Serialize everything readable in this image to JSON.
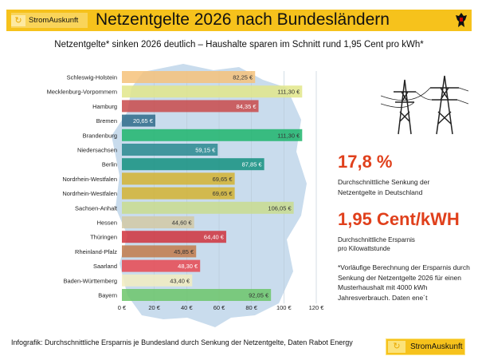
{
  "header": {
    "brand": "StromAuskunft",
    "title": "Netzentgelte 2026 nach Bundesländern"
  },
  "subtitle": "Netzentgelte* sinken 2026 deutlich – Haushalte sparen im Schnitt rund 1,95 Cent pro kWh*",
  "stats": {
    "pct": "17,8 %",
    "pct_desc1": "Durchschnittliche Senkung der",
    "pct_desc2": "Netzentgelte in Deutschland",
    "cent": "1,95 Cent/kWH",
    "cent_desc1": "Durchschnittliche Ersparnis",
    "cent_desc2": "pro Kilowattstunde",
    "note1": "*Vorläufige Berechnung der Ersparnis durch",
    "note2": "Senkung der Netzentgelte 2026 für einen",
    "note3": "Musterhaushalt mit 4000 kWh",
    "note4": "Jahresverbrauch. Daten ene´t"
  },
  "footer": {
    "text": "Infografik: Durchschnittliche Ersparnis je Bundesland durch Senkung der Netzentgelte, Daten Rabot Energy",
    "brand": "StromAuskunft"
  },
  "chart_data": {
    "type": "bar",
    "orientation": "horizontal",
    "categories": [
      "Schleswig-Holstein",
      "Mecklenburg-Vorpommern",
      "Hamburg",
      "Bremen",
      "Brandenburg",
      "Niedersachsen",
      "Berlin",
      "Nordrhein-Westfalen",
      "Nordrhein-Westfalen",
      "Sachsen-Anhalt",
      "Hessen",
      "Thüringen",
      "Rheinland-Pfalz",
      "Saarland",
      "Baden-Württemberg",
      "Bayern"
    ],
    "values": [
      82.25,
      111.3,
      84.35,
      20.65,
      111.3,
      59.15,
      87.85,
      69.65,
      69.65,
      106.05,
      44.6,
      64.4,
      45.85,
      48.3,
      43.4,
      92.05
    ],
    "data_labels": [
      "82,25 €",
      "111,30 €",
      "84,35 €",
      "20,65 €",
      "111,30 €",
      "59,15 €",
      "87,85 €",
      "69,65 €",
      "69,65 €",
      "106,05 €",
      "44,60 €",
      "64,40 €",
      "45,85 €",
      "48,30 €",
      "43,40 €",
      "92,05 €"
    ],
    "colors": [
      "#f6c27a",
      "#e2e68a",
      "#c94a4a",
      "#2e6b8a",
      "#1fb56c",
      "#2a8a8f",
      "#14907f",
      "#d3b331",
      "#d3b331",
      "#c9dc8e",
      "#d2c9a5",
      "#d0323c",
      "#c27a4a",
      "#e84850",
      "#f2ecc0",
      "#6cc66a"
    ],
    "label_colors": [
      "#333",
      "#333",
      "#fff",
      "#fff",
      "#333",
      "#fff",
      "#fff",
      "#333",
      "#333",
      "#333",
      "#333",
      "#fff",
      "#333",
      "#fff",
      "#333",
      "#333"
    ],
    "xlim": [
      0,
      120
    ],
    "xticks": [
      "0 €",
      "20 €",
      "40 €",
      "60 €",
      "80 €",
      "100 €",
      "120 €"
    ],
    "grid": true
  }
}
